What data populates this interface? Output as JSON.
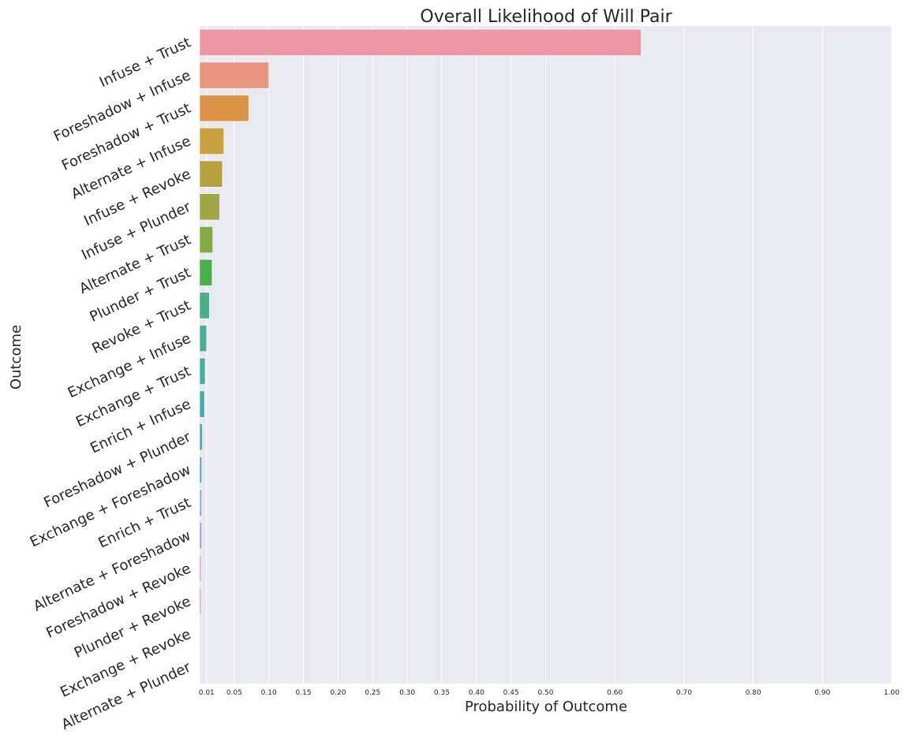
{
  "chart_data": {
    "type": "bar",
    "orientation": "horizontal",
    "title": "Overall Likelihood of Will Pair",
    "xlabel": "Probability of Outcome",
    "ylabel": "Outcome",
    "xlim": [
      0,
      1.0
    ],
    "xticks": [
      0.01,
      0.05,
      0.1,
      0.15,
      0.2,
      0.25,
      0.3,
      0.35,
      0.4,
      0.45,
      0.5,
      0.6,
      0.7,
      0.8,
      0.9,
      1.0
    ],
    "xtick_labels": [
      "0.01",
      "0.05",
      "0.10",
      "0.15",
      "0.20",
      "0.25",
      "0.30",
      "0.35",
      "0.40",
      "0.45",
      "0.50",
      "0.60",
      "0.70",
      "0.80",
      "0.90",
      "1.00"
    ],
    "grid": true,
    "categories": [
      "Infuse + Trust",
      "Foreshadow + Infuse",
      "Foreshadow + Trust",
      "Alternate + Infuse",
      "Infuse + Revoke",
      "Infuse + Plunder",
      "Alternate + Trust",
      "Plunder + Trust",
      "Revoke + Trust",
      "Exchange + Infuse",
      "Exchange + Trust",
      "Enrich + Infuse",
      "Foreshadow + Plunder",
      "Exchange + Foreshadow",
      "Enrich + Trust",
      "Alternate + Foreshadow",
      "Foreshadow + Revoke",
      "Plunder + Revoke",
      "Exchange + Revoke",
      "Alternate + Plunder"
    ],
    "values": [
      0.638,
      0.1,
      0.071,
      0.035,
      0.033,
      0.029,
      0.019,
      0.018,
      0.014,
      0.01,
      0.008,
      0.007,
      0.004,
      0.003,
      0.003,
      0.003,
      0.002,
      0.002,
      0.001,
      0.001
    ],
    "colors": [
      "#ec96a3",
      "#e9967e",
      "#da944a",
      "#c8a03e",
      "#b7a13f",
      "#a1a545",
      "#85aa45",
      "#4aaf4b",
      "#4bae87",
      "#48ad99",
      "#46ada7",
      "#44aab4",
      "#45a7c3",
      "#4aa3d5",
      "#8a9fe8",
      "#aa92e4",
      "#c38cde",
      "#d983d0",
      "#e58fc4",
      "#e98fb5"
    ],
    "background": "#e9e9f1"
  }
}
